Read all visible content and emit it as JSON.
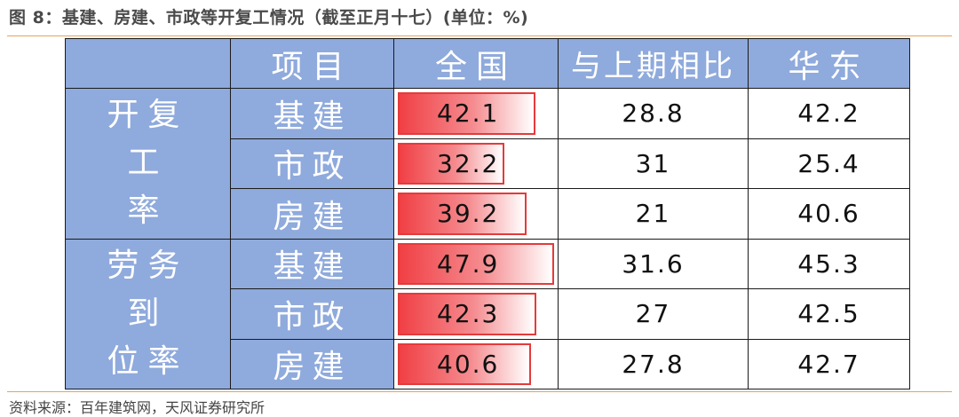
{
  "title": "图 8：基建、房建、市政等开复工情况（截至正月十七）(单位：%)",
  "source": "资料来源：百年建筑网，天风证券研究所",
  "columns": [
    "项目",
    "全国",
    "与上期相比",
    "华东"
  ],
  "bar_scale_max": 47.9,
  "colors": {
    "header_bg": "#8faadc",
    "bar": "#f04045",
    "rule": "#e8a15a"
  },
  "groups": [
    {
      "label_line1": "开复工",
      "label_line2": "率",
      "rows": [
        {
          "item": "基建",
          "national": "42.1",
          "vs_prev": "28.8",
          "east": "42.2",
          "national_value": 42.1
        },
        {
          "item": "市政",
          "national": "32.2",
          "vs_prev": "31",
          "east": "25.4",
          "national_value": 32.2
        },
        {
          "item": "房建",
          "national": "39.2",
          "vs_prev": "21",
          "east": "40.6",
          "national_value": 39.2
        }
      ]
    },
    {
      "label_line1": "劳务到",
      "label_line2": "位率",
      "rows": [
        {
          "item": "基建",
          "national": "47.9",
          "vs_prev": "31.6",
          "east": "45.3",
          "national_value": 47.9
        },
        {
          "item": "市政",
          "national": "42.3",
          "vs_prev": "27",
          "east": "42.5",
          "national_value": 42.3
        },
        {
          "item": "房建",
          "national": "40.6",
          "vs_prev": "27.8",
          "east": "42.7",
          "national_value": 40.6
        }
      ]
    }
  ]
}
